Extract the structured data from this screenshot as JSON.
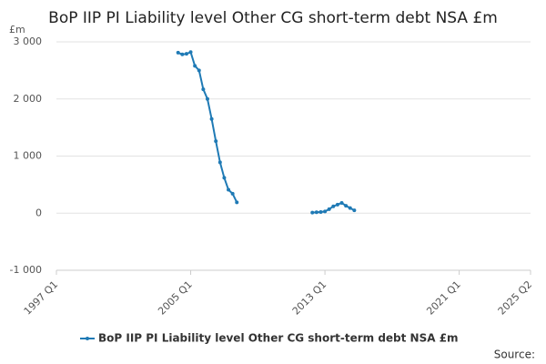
{
  "chart_data": {
    "type": "line",
    "title": "BoP IIP PI Liability level Other CG short-term debt NSA £m",
    "y_unit": "£m",
    "source": "Source:",
    "x": [
      "2004 Q2",
      "2004 Q3",
      "2004 Q4",
      "2005 Q1",
      "2005 Q2",
      "2005 Q3",
      "2005 Q4",
      "2006 Q1",
      "2006 Q2",
      "2006 Q3",
      "2006 Q4",
      "2007 Q1",
      "2007 Q2",
      "2007 Q3",
      "2007 Q4",
      "2008 Q1",
      "2012 Q2",
      "2012 Q3",
      "2012 Q4",
      "2013 Q1",
      "2013 Q2",
      "2013 Q3",
      "2013 Q4",
      "2014 Q1",
      "2014 Q2",
      "2014 Q3",
      "2014 Q4"
    ],
    "series": [
      {
        "name": "BoP IIP PI Liability level Other CG short-term debt NSA £m",
        "color": "#1f7ab5",
        "values": [
          2810,
          2780,
          2790,
          2820,
          2580,
          2500,
          2170,
          2000,
          1650,
          1260,
          890,
          620,
          410,
          340,
          190,
          null,
          10,
          15,
          20,
          30,
          70,
          120,
          150,
          180,
          130,
          90,
          50
        ]
      }
    ],
    "xlim": [
      "1997 Q1",
      "2025 Q2"
    ],
    "xticks": [
      "1997 Q1",
      "2005 Q1",
      "2013 Q1",
      "2021 Q1",
      "2025 Q2"
    ],
    "ylim": [
      -1000,
      3000
    ],
    "yticks": [
      {
        "value": -1000,
        "label": "-1 000"
      },
      0,
      {
        "value": 1000,
        "label": "1 000"
      },
      {
        "value": 2000,
        "label": "2 000"
      },
      {
        "value": 3000,
        "label": "3 000"
      }
    ],
    "grid": true
  }
}
